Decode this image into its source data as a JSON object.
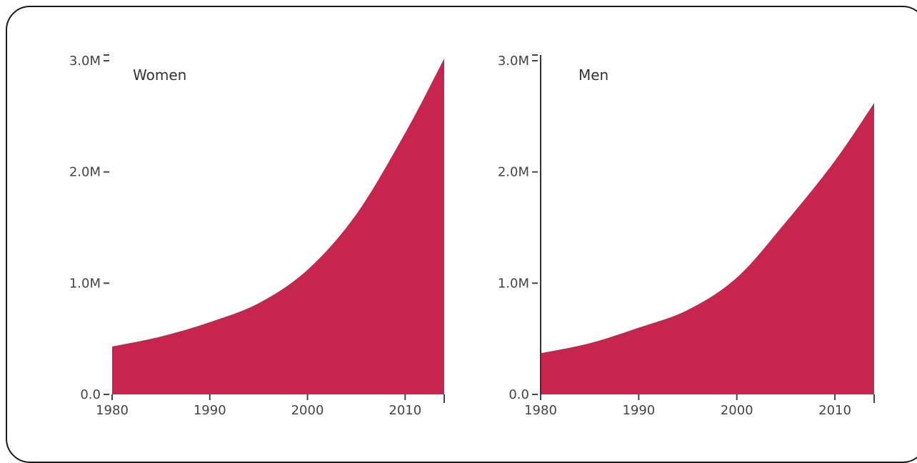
{
  "chart_data": [
    {
      "type": "area",
      "title": "Women",
      "x": [
        1980,
        1985,
        1990,
        1995,
        2000,
        2005,
        2010,
        2014
      ],
      "y": [
        430000,
        520000,
        650000,
        820000,
        1120000,
        1620000,
        2350000,
        3020000
      ],
      "xlim": [
        1980,
        2014
      ],
      "ylim": [
        0,
        3000000
      ],
      "x_ticks": [
        1980,
        1990,
        2000,
        2010
      ],
      "x_tick_labels": [
        "1980",
        "1990",
        "2000",
        "2010"
      ],
      "y_ticks": [
        0,
        1000000,
        2000000,
        3000000
      ],
      "y_tick_labels": [
        "0.0",
        "1.0M",
        "2.0M",
        "3.0M"
      ],
      "color": "#c8254e",
      "xlabel": "",
      "ylabel": "",
      "show_y_axis_line": false
    },
    {
      "type": "area",
      "title": "Men",
      "x": [
        1980,
        1985,
        1990,
        1995,
        2000,
        2005,
        2010,
        2014
      ],
      "y": [
        370000,
        460000,
        600000,
        760000,
        1050000,
        1550000,
        2100000,
        2620000
      ],
      "xlim": [
        1980,
        2014
      ],
      "ylim": [
        0,
        3000000
      ],
      "x_ticks": [
        1980,
        1990,
        2000,
        2010
      ],
      "x_tick_labels": [
        "1980",
        "1990",
        "2000",
        "2010"
      ],
      "y_ticks": [
        0,
        1000000,
        2000000,
        3000000
      ],
      "y_tick_labels": [
        "0.0",
        "1.0M",
        "2.0M",
        "3.0M"
      ],
      "color": "#c8254e",
      "xlabel": "",
      "ylabel": "",
      "show_y_axis_line": true
    }
  ]
}
